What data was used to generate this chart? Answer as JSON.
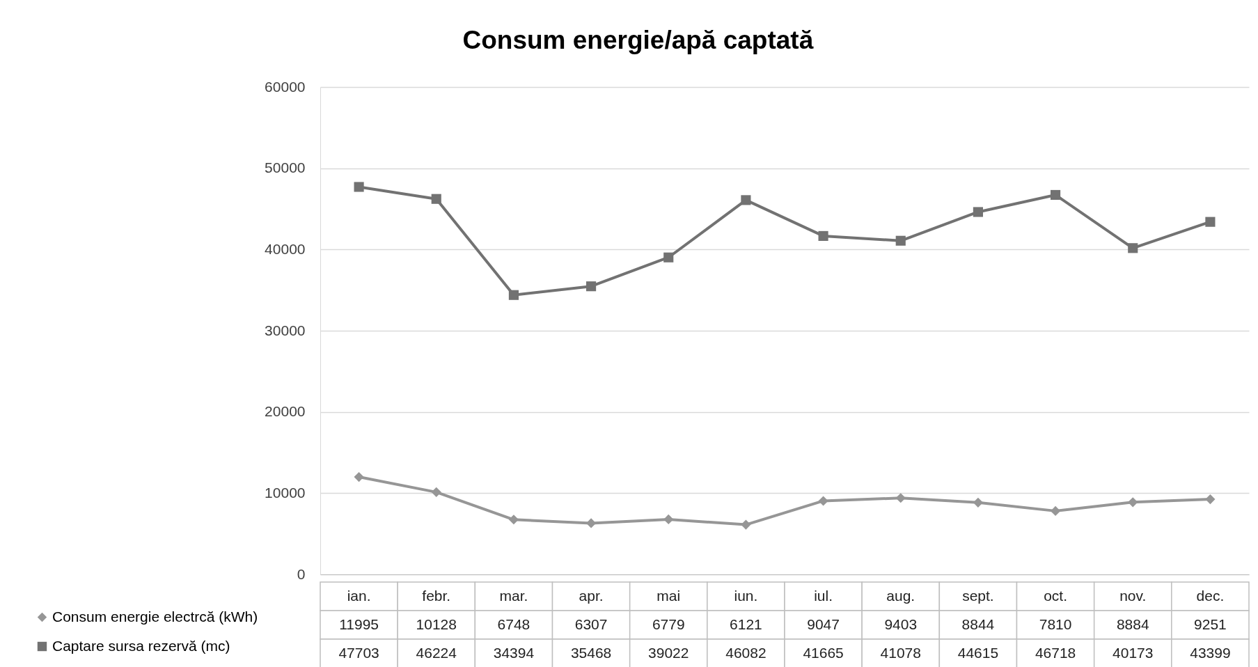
{
  "chart_data": {
    "type": "line",
    "title": "Consum energie/apă captată",
    "categories": [
      "ian.",
      "febr.",
      "mar.",
      "apr.",
      "mai",
      "iun.",
      "iul.",
      "aug.",
      "sept.",
      "oct.",
      "nov.",
      "dec."
    ],
    "series": [
      {
        "name": "Consum energie electrcă (kWh)",
        "color": "#969696",
        "marker": "diamond",
        "values": [
          11995,
          10128,
          6748,
          6307,
          6779,
          6121,
          9047,
          9403,
          8844,
          7810,
          8884,
          9251
        ]
      },
      {
        "name": "Captare sursa rezervă (mc)",
        "color": "#727272",
        "marker": "square",
        "values": [
          47703,
          46224,
          34394,
          35468,
          39022,
          46082,
          41665,
          41078,
          44615,
          46718,
          40173,
          43399
        ]
      }
    ],
    "ylim": [
      0,
      60000
    ],
    "yticks": [
      0,
      10000,
      20000,
      30000,
      40000,
      50000,
      60000
    ],
    "grid": "y",
    "legend": "bottom left",
    "data_labels": true,
    "line_style": "solid"
  }
}
